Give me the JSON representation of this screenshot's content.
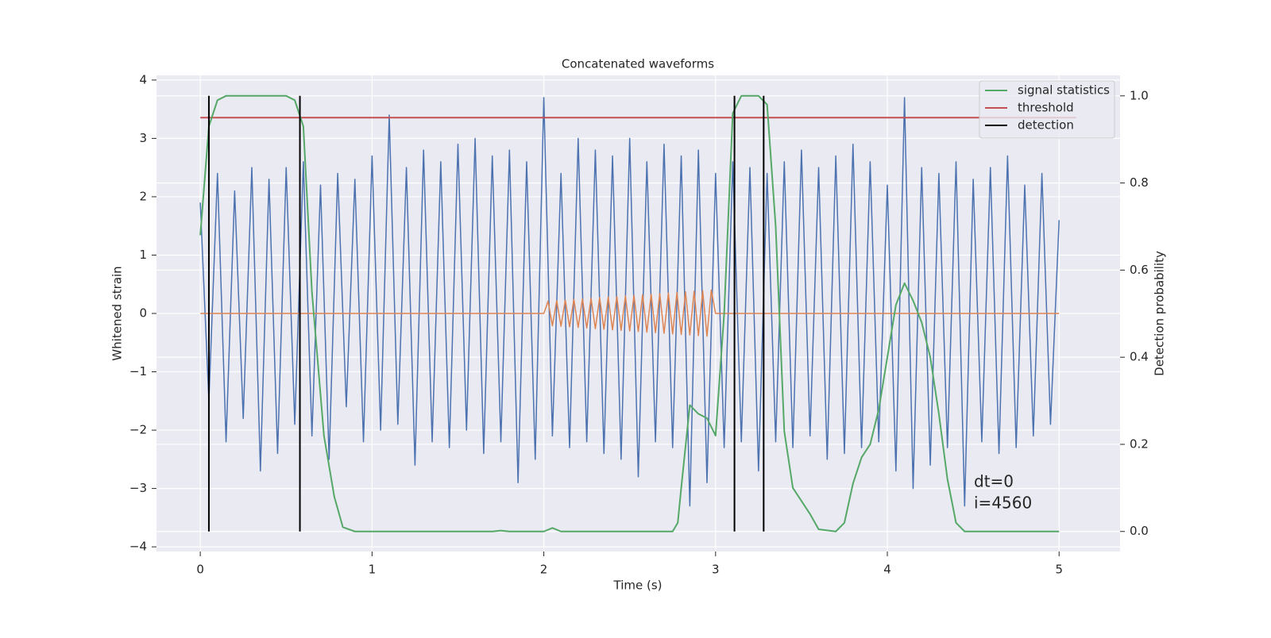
{
  "chart_data": {
    "type": "line",
    "title": "Concatenated waveforms",
    "xlabel": "Time (s)",
    "ylabel": "Whitened strain",
    "y2label": "Detection probability",
    "xlim": [
      -0.255,
      5.355
    ],
    "xticks": [
      0,
      1,
      2,
      3,
      4,
      5
    ],
    "ylim": [
      -4.08,
      4.08
    ],
    "yticks": [
      {
        "value": -4,
        "label": "−4"
      },
      {
        "value": -3,
        "label": "−3"
      },
      {
        "value": -2,
        "label": "−2"
      },
      {
        "value": -1,
        "label": "−1"
      },
      0,
      1,
      2,
      3,
      4
    ],
    "y2lim": [
      -0.046,
      1.047
    ],
    "y2ticks": [
      {
        "value": 0,
        "label": "0.0"
      },
      0.2,
      0.4,
      0.6,
      0.8,
      {
        "value": 1,
        "label": "1.0"
      }
    ],
    "grid": true,
    "legend": "upper right",
    "series": [
      {
        "color": "#4c72b0",
        "x": [
          0,
          0.05,
          0.1,
          0.15,
          0.2,
          0.25,
          0.3,
          0.35,
          0.4,
          0.45,
          0.5,
          0.55,
          0.6,
          0.65,
          0.7,
          0.75,
          0.8,
          0.85,
          0.9,
          0.95,
          1,
          1.05,
          1.1,
          1.15,
          1.2,
          1.25,
          1.3,
          1.35,
          1.4,
          1.45,
          1.5,
          1.55,
          1.6,
          1.65,
          1.7,
          1.75,
          1.8,
          1.85,
          1.9,
          1.95,
          2,
          2.05,
          2.1,
          2.15,
          2.2,
          2.25,
          2.3,
          2.35,
          2.4,
          2.45,
          2.5,
          2.55,
          2.6,
          2.65,
          2.7,
          2.75,
          2.8,
          2.85,
          2.9,
          2.95,
          3,
          3.05,
          3.1,
          3.15,
          3.2,
          3.25,
          3.3,
          3.35,
          3.4,
          3.45,
          3.5,
          3.55,
          3.6,
          3.65,
          3.7,
          3.75,
          3.8,
          3.85,
          3.9,
          3.95,
          4,
          4.05,
          4.1,
          4.15,
          4.2,
          4.25,
          4.3,
          4.35,
          4.4,
          4.45,
          4.5,
          4.55,
          4.6,
          4.65,
          4.7,
          4.75,
          4.8,
          4.85,
          4.9,
          4.95,
          5
        ],
        "values": [
          1.9,
          -1.5,
          2.4,
          -2.2,
          2.1,
          -1.8,
          2.5,
          -2.7,
          2.3,
          -2.4,
          2.5,
          -1.9,
          2.6,
          -2.1,
          2.2,
          -2.5,
          2.4,
          -1.6,
          2.3,
          -2.2,
          2.7,
          -2.0,
          3.4,
          -1.9,
          2.5,
          -2.6,
          2.8,
          -2.2,
          2.6,
          -2.3,
          2.9,
          -2.0,
          3.0,
          -2.4,
          2.7,
          -2.2,
          2.8,
          -2.9,
          2.6,
          -2.5,
          3.7,
          -2.1,
          2.4,
          -2.3,
          3.0,
          -2.2,
          2.8,
          -2.4,
          2.7,
          -2.5,
          3.0,
          -2.8,
          2.6,
          -2.2,
          2.9,
          -2.3,
          2.7,
          -3.3,
          2.8,
          -2.9,
          2.4,
          -2.3,
          2.6,
          -2.2,
          2.5,
          -2.7,
          2.4,
          -2.2,
          2.6,
          -2.3,
          2.8,
          -2.1,
          2.5,
          -2.5,
          2.7,
          -2.4,
          2.9,
          -2.3,
          2.6,
          -2.2,
          2.2,
          -2.7,
          3.7,
          -3.0,
          2.5,
          -2.6,
          2.4,
          -2.3,
          2.6,
          -3.3,
          2.3,
          -2.2,
          2.5,
          -2.4,
          2.7,
          -2.3,
          2.2,
          -2.1,
          2.4,
          -1.9,
          1.6
        ]
      },
      {
        "color": "#dd8452",
        "x": [
          0,
          2,
          2.025,
          2.05,
          2.075,
          2.1,
          2.125,
          2.15,
          2.175,
          2.2,
          2.225,
          2.25,
          2.275,
          2.3,
          2.325,
          2.35,
          2.375,
          2.4,
          2.425,
          2.45,
          2.475,
          2.5,
          2.525,
          2.55,
          2.575,
          2.6,
          2.625,
          2.65,
          2.675,
          2.7,
          2.725,
          2.75,
          2.775,
          2.8,
          2.825,
          2.85,
          2.875,
          2.9,
          2.925,
          2.95,
          2.975,
          3,
          5
        ],
        "values": [
          0,
          0,
          0.21,
          -0.21,
          0.22,
          -0.22,
          0.23,
          -0.23,
          0.24,
          -0.24,
          0.25,
          -0.25,
          0.26,
          -0.26,
          0.27,
          -0.27,
          0.28,
          -0.28,
          0.29,
          -0.29,
          0.3,
          -0.3,
          0.31,
          -0.31,
          0.32,
          -0.32,
          0.33,
          -0.33,
          0.34,
          -0.34,
          0.35,
          -0.35,
          0.36,
          -0.36,
          0.37,
          -0.37,
          0.38,
          -0.38,
          0.39,
          -0.39,
          0.4,
          0,
          0
        ]
      },
      {
        "name": "signal statistics",
        "color": "#55a868",
        "axis": "y2",
        "x": [
          0,
          0.05,
          0.1,
          0.15,
          0.5,
          0.55,
          0.6,
          0.65,
          0.72,
          0.78,
          0.83,
          0.9,
          1.7,
          1.75,
          1.8,
          2.0,
          2.05,
          2.1,
          2.7,
          2.75,
          2.78,
          2.8,
          2.85,
          2.9,
          2.95,
          3.0,
          3.05,
          3.1,
          3.15,
          3.25,
          3.3,
          3.35,
          3.4,
          3.45,
          3.5,
          3.55,
          3.6,
          3.7,
          3.75,
          3.8,
          3.85,
          3.9,
          3.95,
          4.0,
          4.05,
          4.1,
          4.15,
          4.2,
          4.25,
          4.3,
          4.35,
          4.4,
          4.45,
          5.0
        ],
        "values": [
          0.68,
          0.93,
          0.99,
          1.0,
          1.0,
          0.99,
          0.93,
          0.55,
          0.22,
          0.08,
          0.01,
          0.0,
          0.0,
          0.002,
          0.0,
          0.0,
          0.008,
          0.0,
          0.0,
          0.0,
          0.02,
          0.1,
          0.29,
          0.27,
          0.26,
          0.22,
          0.5,
          0.96,
          1.0,
          1.0,
          0.98,
          0.7,
          0.23,
          0.1,
          0.07,
          0.04,
          0.005,
          0.0,
          0.02,
          0.11,
          0.17,
          0.2,
          0.28,
          0.4,
          0.52,
          0.57,
          0.53,
          0.48,
          0.4,
          0.27,
          0.12,
          0.02,
          0.0,
          0.0
        ]
      },
      {
        "name": "threshold",
        "color": "#c44e52",
        "axis": "y2",
        "x": [
          0,
          5.1
        ],
        "values": [
          0.95,
          0.95
        ]
      }
    ],
    "detection": {
      "name": "detection",
      "color": "#000000",
      "axis": "y2",
      "x": [
        0.05,
        0.58,
        3.11,
        3.28
      ],
      "ymin": 0,
      "ymax": 1
    },
    "annotations": [
      "dt=0",
      "i=4560"
    ]
  }
}
